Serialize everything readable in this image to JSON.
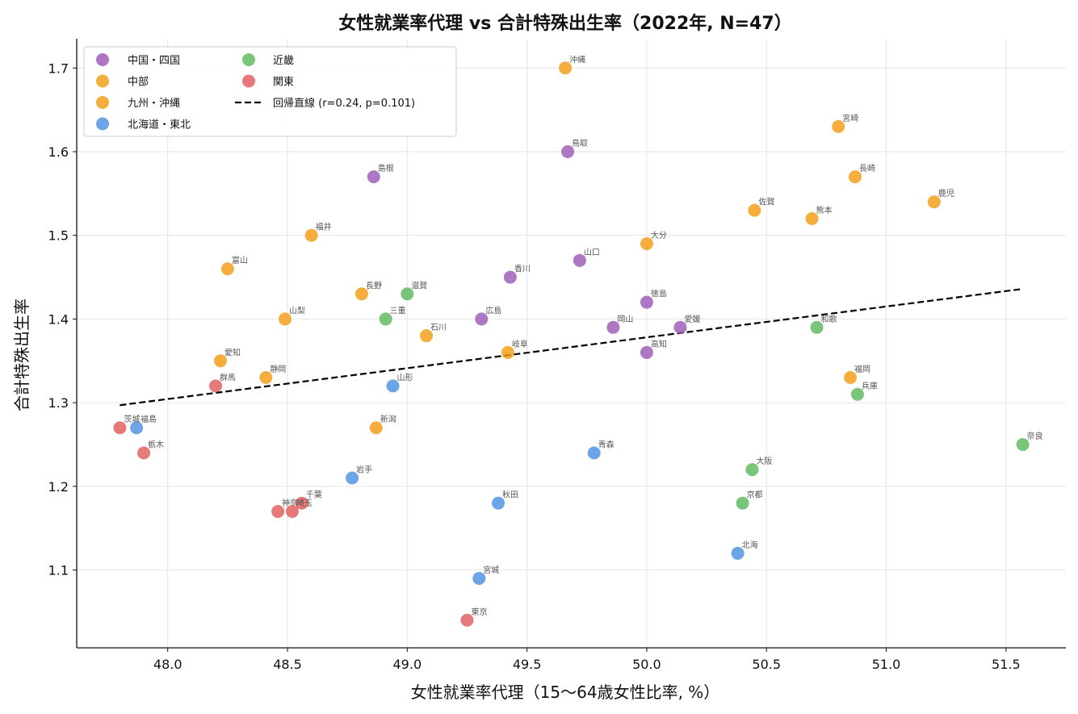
{
  "chart_data": {
    "type": "scatter",
    "title": "女性就業率代理 vs 合計特殊出生率（2022年, N=47）",
    "xlabel": "女性就業率代理（15〜64歳女性比率, %）",
    "ylabel": "合計特殊出生率",
    "xlim": [
      47.62,
      51.75
    ],
    "ylim": [
      1.007,
      1.735
    ],
    "xticks": [
      "48.0",
      "48.5",
      "49.0",
      "49.5",
      "50.0",
      "50.5",
      "51.0",
      "51.5"
    ],
    "xtick_values": [
      48.0,
      48.5,
      49.0,
      49.5,
      50.0,
      50.5,
      51.0,
      51.5
    ],
    "yticks": [
      "1.1",
      "1.2",
      "1.3",
      "1.4",
      "1.5",
      "1.6",
      "1.7"
    ],
    "ytick_values": [
      1.1,
      1.2,
      1.3,
      1.4,
      1.5,
      1.6,
      1.7
    ],
    "grid": true,
    "legend_position": "top-left",
    "series": [
      {
        "name": "中国・四国",
        "color": "#9b59b6",
        "points": [
          {
            "label": "島根",
            "x": 48.86,
            "y": 1.57
          },
          {
            "label": "鳥取",
            "x": 49.67,
            "y": 1.6
          },
          {
            "label": "香川",
            "x": 49.43,
            "y": 1.45
          },
          {
            "label": "山口",
            "x": 49.72,
            "y": 1.47
          },
          {
            "label": "広島",
            "x": 49.31,
            "y": 1.4
          },
          {
            "label": "徳島",
            "x": 50.0,
            "y": 1.42
          },
          {
            "label": "岡山",
            "x": 49.86,
            "y": 1.39
          },
          {
            "label": "愛媛",
            "x": 50.14,
            "y": 1.39
          },
          {
            "label": "高知",
            "x": 50.0,
            "y": 1.36
          }
        ]
      },
      {
        "name": "中部",
        "color": "#f39c12",
        "points": [
          {
            "label": "福井",
            "x": 48.6,
            "y": 1.5
          },
          {
            "label": "富山",
            "x": 48.25,
            "y": 1.46
          },
          {
            "label": "長野",
            "x": 48.81,
            "y": 1.43
          },
          {
            "label": "山梨",
            "x": 48.49,
            "y": 1.4
          },
          {
            "label": "石川",
            "x": 49.08,
            "y": 1.38
          },
          {
            "label": "岐阜",
            "x": 49.42,
            "y": 1.36
          },
          {
            "label": "愛知",
            "x": 48.22,
            "y": 1.35
          },
          {
            "label": "静岡",
            "x": 48.41,
            "y": 1.33
          },
          {
            "label": "新潟",
            "x": 48.87,
            "y": 1.27
          }
        ]
      },
      {
        "name": "九州・沖縄",
        "color": "#f39c12",
        "points": [
          {
            "label": "沖縄",
            "x": 49.66,
            "y": 1.7
          },
          {
            "label": "宮崎",
            "x": 50.8,
            "y": 1.63
          },
          {
            "label": "長崎",
            "x": 50.87,
            "y": 1.57
          },
          {
            "label": "鹿児",
            "x": 51.2,
            "y": 1.54
          },
          {
            "label": "佐賀",
            "x": 50.45,
            "y": 1.53
          },
          {
            "label": "熊本",
            "x": 50.69,
            "y": 1.52
          },
          {
            "label": "大分",
            "x": 50.0,
            "y": 1.49
          },
          {
            "label": "福岡",
            "x": 50.85,
            "y": 1.33
          }
        ]
      },
      {
        "name": "北海道・東北",
        "color": "#4a90e2",
        "points": [
          {
            "label": "山形",
            "x": 48.94,
            "y": 1.32
          },
          {
            "label": "福島",
            "x": 47.87,
            "y": 1.27
          },
          {
            "label": "青森",
            "x": 49.78,
            "y": 1.24
          },
          {
            "label": "岩手",
            "x": 48.77,
            "y": 1.21
          },
          {
            "label": "秋田",
            "x": 49.38,
            "y": 1.18
          },
          {
            "label": "北海",
            "x": 50.38,
            "y": 1.12
          },
          {
            "label": "宮城",
            "x": 49.3,
            "y": 1.09
          }
        ]
      },
      {
        "name": "近畿",
        "color": "#5cb85c",
        "points": [
          {
            "label": "滋賀",
            "x": 49.0,
            "y": 1.43
          },
          {
            "label": "三重",
            "x": 48.91,
            "y": 1.4
          },
          {
            "label": "和歌",
            "x": 50.71,
            "y": 1.39
          },
          {
            "label": "兵庫",
            "x": 50.88,
            "y": 1.31
          },
          {
            "label": "奈良",
            "x": 51.57,
            "y": 1.25
          },
          {
            "label": "大阪",
            "x": 50.44,
            "y": 1.22
          },
          {
            "label": "京都",
            "x": 50.4,
            "y": 1.18
          }
        ]
      },
      {
        "name": "関東",
        "color": "#e05c5c",
        "points": [
          {
            "label": "群馬",
            "x": 48.2,
            "y": 1.32
          },
          {
            "label": "茨城",
            "x": 47.8,
            "y": 1.27
          },
          {
            "label": "栃木",
            "x": 47.9,
            "y": 1.24
          },
          {
            "label": "千葉",
            "x": 48.56,
            "y": 1.18
          },
          {
            "label": "神奈",
            "x": 48.46,
            "y": 1.17
          },
          {
            "label": "埼玉",
            "x": 48.52,
            "y": 1.17
          },
          {
            "label": "東京",
            "x": 49.25,
            "y": 1.04
          }
        ]
      }
    ],
    "regression": {
      "name": "回帰直線 (r=0.24, p=0.101)",
      "color": "#000000",
      "x": [
        47.8,
        51.57
      ],
      "y": [
        1.297,
        1.436
      ]
    }
  }
}
